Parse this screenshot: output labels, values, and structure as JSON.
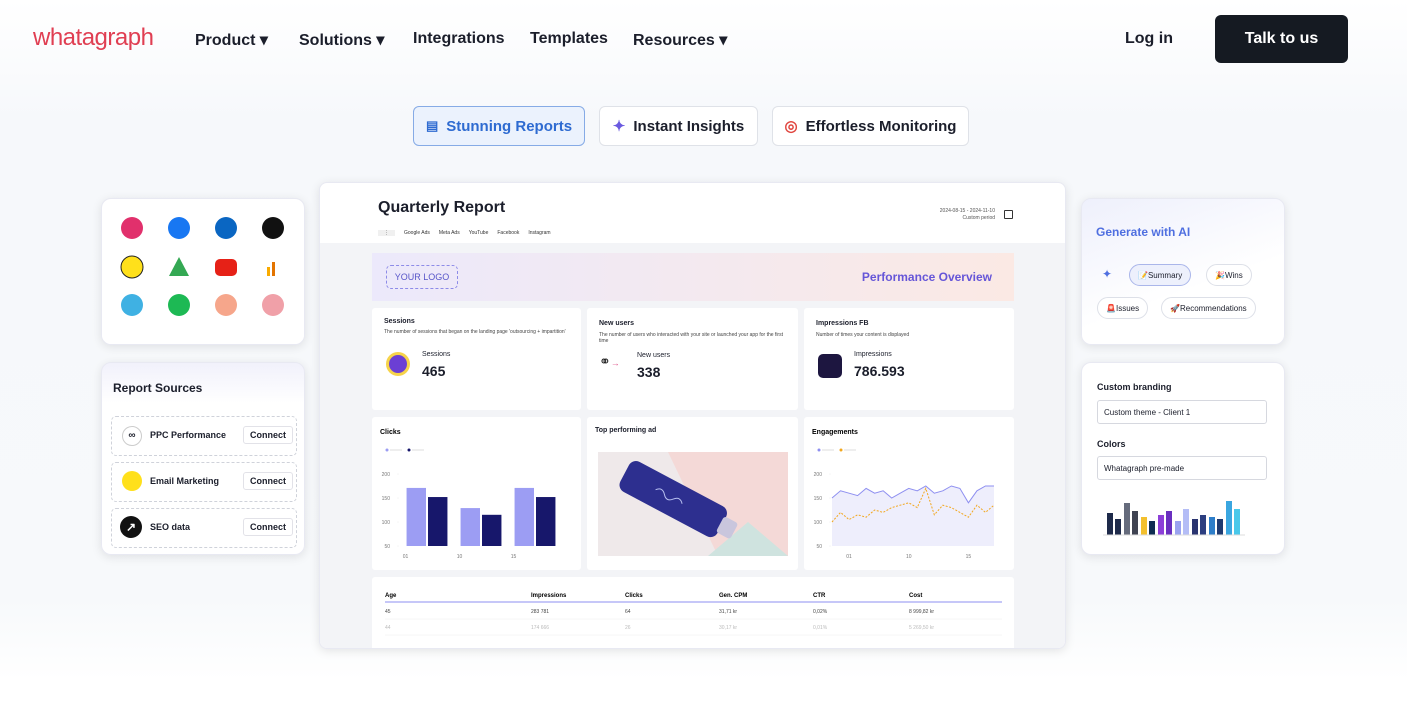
{
  "nav": {
    "logo": "whatagraph",
    "menu": [
      "Product",
      "Solutions",
      "Integrations",
      "Templates",
      "Resources"
    ],
    "login": "Log in",
    "cta": "Talk to us"
  },
  "tabs": [
    "Stunning Reports",
    "Instant Insights",
    "Effortless Monitoring"
  ],
  "report": {
    "title": "Quarterly Report",
    "date_range": "2024-08-15 - 2024-11-10",
    "period": "Custom period",
    "channels": [
      "Google Ads",
      "Meta Ads",
      "YouTube",
      "Facebook",
      "Instagram"
    ],
    "logo": "YOUR LOGO",
    "heading": "Performance Overview",
    "kpis": [
      {
        "title": "Sessions",
        "description": "The number of sessions that began on the landing page 'outsourcing + impartition'",
        "label": "Sessions",
        "value": "465"
      },
      {
        "title": "New users",
        "description": "The number of users who interacted with your site or launched your app for the first time",
        "label": "New users",
        "value": "338"
      },
      {
        "title": "Impressions FB",
        "description": "Number of times your content is displayed",
        "label": "Impressions",
        "value": "786.593"
      }
    ],
    "ad_title": "Top performing ad",
    "table": {
      "headers": [
        "Age",
        "Impressions",
        "Clicks",
        "Gen. CPM",
        "CTR",
        "Cost"
      ],
      "rows": [
        [
          "45",
          "283 781",
          "64",
          "31,71 kr",
          "0,02%",
          "8 999,82 kr"
        ],
        [
          "44",
          "174 666",
          "26",
          "30,17 kr",
          "0,01%",
          "5 269,50 kr"
        ]
      ]
    }
  },
  "chart_data": [
    {
      "type": "bar",
      "title": "Clicks",
      "categories": [
        "01",
        "10",
        "15"
      ],
      "series": [
        {
          "color": "#9c9df3",
          "values": [
            171,
            129,
            171
          ]
        },
        {
          "color": "#17176b",
          "values": [
            152,
            115,
            152
          ]
        }
      ],
      "ylim": [
        50,
        200
      ],
      "yticks": [
        50,
        100,
        150,
        200
      ]
    },
    {
      "type": "line",
      "title": "Engagements",
      "categories": [
        null,
        null,
        "01",
        null,
        null,
        null,
        null,
        null,
        null,
        "10",
        null,
        null,
        null,
        null,
        null,
        null,
        "15",
        null,
        null,
        null
      ],
      "series": [
        {
          "color": "#8e8ff0",
          "values": [
            150,
            165,
            160,
            155,
            170,
            160,
            165,
            150,
            160,
            170,
            165,
            175,
            160,
            165,
            175,
            170,
            140,
            165,
            175,
            175
          ]
        },
        {
          "color": "#f2a71e",
          "values": [
            100,
            120,
            105,
            115,
            110,
            125,
            120,
            130,
            135,
            140,
            130,
            170,
            115,
            135,
            130,
            120,
            110,
            135,
            120,
            135
          ]
        }
      ],
      "ylim": [
        50,
        200
      ],
      "yticks": [
        50,
        100,
        150,
        200
      ]
    }
  ],
  "sources": {
    "title": "Report Sources",
    "items": [
      {
        "name": "PPC Performance",
        "action": "Connect"
      },
      {
        "name": "Email Marketing",
        "action": "Connect"
      },
      {
        "name": "SEO data",
        "action": "Connect"
      }
    ]
  },
  "ai": {
    "title": "Generate with AI",
    "chips": [
      "Summary",
      "Wins",
      "Issues",
      "Recommendations"
    ]
  },
  "branding": {
    "title": "Custom branding",
    "theme": "Custom theme - Client 1",
    "colors_label": "Colors",
    "palette": "Whatagraph pre-made"
  }
}
